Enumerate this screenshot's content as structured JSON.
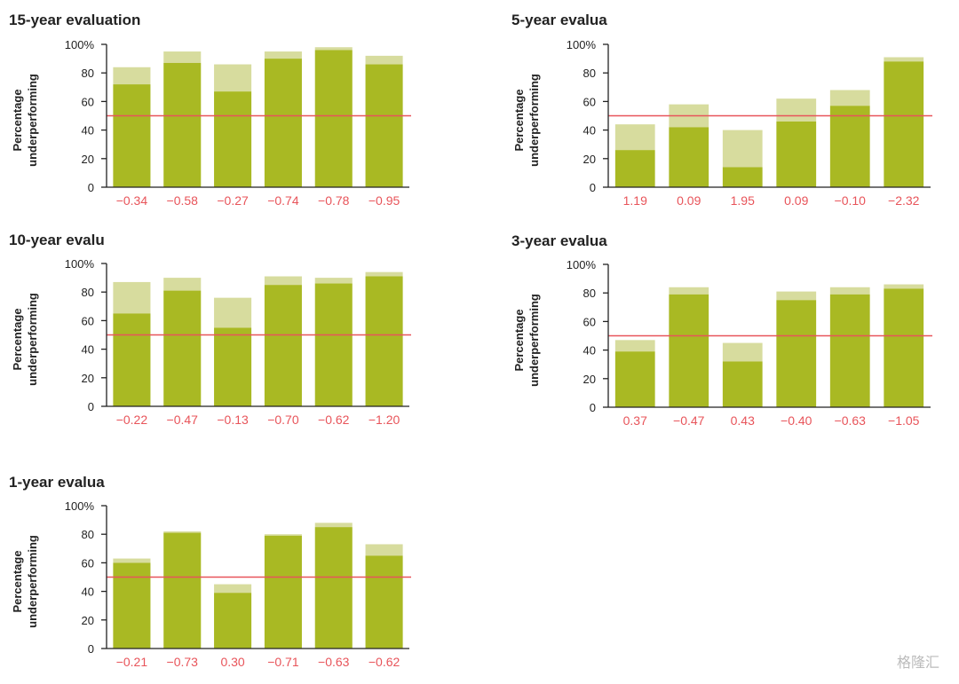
{
  "colors": {
    "bar_dark": "#a9b923",
    "bar_light": "#d7dc9e",
    "reference_line": "#e8545a",
    "label": "#e8545a",
    "axis": "#222222"
  },
  "watermark": "格隆汇",
  "chart_data": [
    {
      "type": "bar",
      "title": "15-year evaluation",
      "ylabel": [
        "Percentage",
        "underperforming"
      ],
      "ylim": [
        0,
        100
      ],
      "yticks": [
        "0",
        "20",
        "40",
        "60",
        "80",
        "100%"
      ],
      "reference_line": 50,
      "categories": [
        "−0.34",
        "−0.58",
        "−0.27",
        "−0.74",
        "−0.78",
        "−0.95"
      ],
      "series": [
        {
          "values": [
            72,
            87,
            67,
            90,
            96,
            86
          ]
        },
        {
          "values": [
            84,
            95,
            86,
            95,
            98,
            92
          ]
        }
      ]
    },
    {
      "type": "bar",
      "title": "5-year evalua",
      "ylabel": [
        "Percentage",
        "underperforming"
      ],
      "ylim": [
        0,
        100
      ],
      "yticks": [
        "0",
        "20",
        "40",
        "60",
        "80",
        "100%"
      ],
      "reference_line": 50,
      "categories": [
        "1.19",
        "0.09",
        "1.95",
        "0.09",
        "−0.10",
        "−2.32"
      ],
      "series": [
        {
          "values": [
            26,
            42,
            14,
            46,
            57,
            88
          ]
        },
        {
          "values": [
            44,
            58,
            40,
            62,
            68,
            91
          ]
        }
      ]
    },
    {
      "type": "bar",
      "title": "10-year evalu",
      "ylabel": [
        "Percentage",
        "underperforming"
      ],
      "ylim": [
        0,
        100
      ],
      "yticks": [
        "0",
        "20",
        "40",
        "60",
        "80",
        "100%"
      ],
      "reference_line": 50,
      "categories": [
        "−0.22",
        "−0.47",
        "−0.13",
        "−0.70",
        "−0.62",
        "−1.20"
      ],
      "series": [
        {
          "values": [
            65,
            81,
            55,
            85,
            86,
            91
          ]
        },
        {
          "values": [
            87,
            90,
            76,
            91,
            90,
            94
          ]
        }
      ]
    },
    {
      "type": "bar",
      "title": "3-year evalua",
      "ylabel": [
        "Percentage",
        "underperforming"
      ],
      "ylim": [
        0,
        100
      ],
      "yticks": [
        "0",
        "20",
        "40",
        "60",
        "80",
        "100%"
      ],
      "reference_line": 50,
      "categories": [
        "0.37",
        "−0.47",
        "0.43",
        "−0.40",
        "−0.63",
        "−1.05"
      ],
      "series": [
        {
          "values": [
            39,
            79,
            32,
            75,
            79,
            83
          ]
        },
        {
          "values": [
            47,
            84,
            45,
            81,
            84,
            86
          ]
        }
      ]
    },
    {
      "type": "bar",
      "title": "1-year evalua",
      "ylabel": [
        "Percentage",
        "underperforming"
      ],
      "ylim": [
        0,
        100
      ],
      "yticks": [
        "0",
        "20",
        "40",
        "60",
        "80",
        "100%"
      ],
      "reference_line": 50,
      "categories": [
        "−0.21",
        "−0.73",
        "0.30",
        "−0.71",
        "−0.63",
        "−0.62"
      ],
      "series": [
        {
          "values": [
            60,
            81,
            39,
            79,
            85,
            65
          ]
        },
        {
          "values": [
            63,
            82,
            45,
            80,
            88,
            73
          ]
        }
      ]
    }
  ]
}
